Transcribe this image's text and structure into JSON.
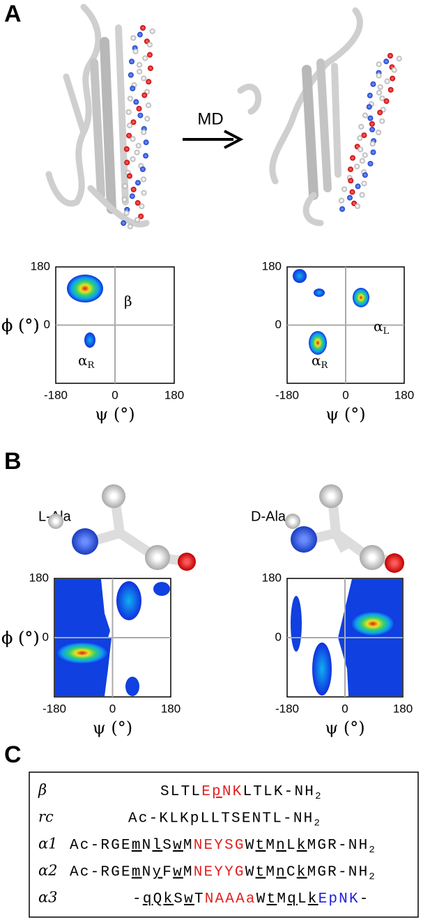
{
  "panel_labels": [
    "A",
    "B",
    "C"
  ],
  "arrow_label": "MD",
  "molecules": [
    "L-Ala",
    "D-Ala"
  ],
  "plots": [
    {
      "xlim": [
        -180,
        180
      ],
      "ylim": [
        -180,
        180
      ],
      "xticks": [
        -180,
        0,
        180
      ],
      "yticks": [
        0,
        180
      ],
      "xlabel": "ψ (°)",
      "ylabel": "ϕ (°)",
      "annotations": [
        {
          "text": "β"
        },
        {
          "text": "α",
          "sub": "R"
        }
      ]
    },
    {
      "xlim": [
        -180,
        180
      ],
      "ylim": [
        -180,
        180
      ],
      "xticks": [
        -180,
        0,
        180
      ],
      "yticks": [
        0,
        180
      ],
      "xlabel": "ψ (°)",
      "ylabel": "ϕ (°)",
      "annotations": [
        {
          "text": "α",
          "sub": "L"
        },
        {
          "text": "α",
          "sub": "R"
        }
      ]
    },
    {
      "xlim": [
        -180,
        180
      ],
      "ylim": [
        -180,
        180
      ],
      "xticks": [
        -180,
        0,
        180
      ],
      "yticks": [
        0,
        180
      ],
      "xlabel": "ψ (°)",
      "ylabel": "ϕ (°)",
      "annotations": []
    },
    {
      "xlim": [
        -180,
        180
      ],
      "ylim": [
        -180,
        180
      ],
      "xticks": [
        -180,
        0,
        180
      ],
      "yticks": [
        0,
        180
      ],
      "xlabel": "ψ (°)",
      "ylabel": "ϕ (°)",
      "annotations": []
    }
  ],
  "sequences": [
    {
      "name": "β",
      "segments": [
        {
          "text": "SLTL"
        },
        {
          "text": "E",
          "color": "#e02020"
        },
        {
          "text": "p",
          "color": "#e02020",
          "underline": true
        },
        {
          "text": "NK",
          "color": "#e02020"
        },
        {
          "text": "LTLK-NH"
        },
        {
          "text": "2",
          "subscript": true
        }
      ]
    },
    {
      "name": "rc",
      "segments": [
        {
          "text": "Ac-KLKpLLTSENTL-NH"
        },
        {
          "text": "2",
          "subscript": true
        }
      ]
    },
    {
      "name": "α1",
      "segments": [
        {
          "text": "Ac-RGE"
        },
        {
          "text": "m",
          "underline": true
        },
        {
          "text": "N"
        },
        {
          "text": "l",
          "underline": true
        },
        {
          "text": "S"
        },
        {
          "text": "w",
          "underline": true
        },
        {
          "text": "M"
        },
        {
          "text": "NEYSG",
          "color": "#e02020"
        },
        {
          "text": "W"
        },
        {
          "text": "t",
          "underline": true
        },
        {
          "text": "M"
        },
        {
          "text": "n",
          "underline": true
        },
        {
          "text": "L"
        },
        {
          "text": "k",
          "underline": true
        },
        {
          "text": "MGR-NH"
        },
        {
          "text": "2",
          "subscript": true
        }
      ]
    },
    {
      "name": "α2",
      "segments": [
        {
          "text": "Ac-RGE"
        },
        {
          "text": "m",
          "underline": true
        },
        {
          "text": "N"
        },
        {
          "text": "y",
          "underline": true
        },
        {
          "text": "F"
        },
        {
          "text": "w",
          "underline": true
        },
        {
          "text": "M"
        },
        {
          "text": "NEYYG",
          "color": "#e02020"
        },
        {
          "text": "W"
        },
        {
          "text": "t",
          "underline": true
        },
        {
          "text": "M"
        },
        {
          "text": "n",
          "underline": true
        },
        {
          "text": "C"
        },
        {
          "text": "k",
          "underline": true
        },
        {
          "text": "MGR-NH"
        },
        {
          "text": "2",
          "subscript": true
        }
      ]
    },
    {
      "name": "α3",
      "segments": [
        {
          "text": "-"
        },
        {
          "text": "q",
          "underline": true
        },
        {
          "text": "Q"
        },
        {
          "text": "k",
          "underline": true
        },
        {
          "text": "S"
        },
        {
          "text": "w",
          "underline": true
        },
        {
          "text": "T"
        },
        {
          "text": "NAAAa",
          "color": "#e02020"
        },
        {
          "text": "W"
        },
        {
          "text": "t",
          "underline": true
        },
        {
          "text": "M"
        },
        {
          "text": "q",
          "underline": true
        },
        {
          "text": "L"
        },
        {
          "text": "k",
          "underline": true
        },
        {
          "text": "EpNK",
          "color": "#2020e0"
        },
        {
          "text": "-"
        }
      ]
    }
  ]
}
